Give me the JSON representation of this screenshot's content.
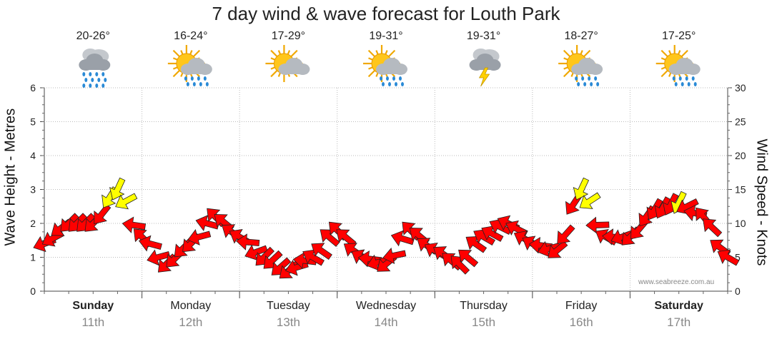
{
  "chart_data": {
    "type": "line",
    "title": "7 day wind & wave forecast for Louth Park",
    "ylabel_left": "Wave Height - Metres",
    "ylabel_right": "Wind Speed - Knots",
    "ylim_left": [
      0,
      6
    ],
    "ylim_right": [
      0,
      30
    ],
    "yticks_left": [
      "0",
      "1",
      "2",
      "3",
      "4",
      "5",
      "6"
    ],
    "yticks_right": [
      "0",
      "5",
      "10",
      "15",
      "20",
      "25",
      "30"
    ],
    "grid": true,
    "credit": "www.seabreeze.com.au",
    "days": [
      {
        "name": "Sunday",
        "date": "11th",
        "temp": "20-26°",
        "icon": "rain-cloud-icon",
        "bold": true
      },
      {
        "name": "Monday",
        "date": "12th",
        "temp": "16-24°",
        "icon": "sun-shower-icon",
        "bold": false
      },
      {
        "name": "Tuesday",
        "date": "13th",
        "temp": "17-29°",
        "icon": "partly-cloudy-icon",
        "bold": false
      },
      {
        "name": "Wednesday",
        "date": "14th",
        "temp": "19-31°",
        "icon": "sun-shower-icon",
        "bold": false
      },
      {
        "name": "Thursday",
        "date": "15th",
        "temp": "19-31°",
        "icon": "thunderstorm-icon",
        "bold": false
      },
      {
        "name": "Friday",
        "date": "16th",
        "temp": "18-27°",
        "icon": "sun-shower-icon",
        "bold": false
      },
      {
        "name": "Saturday",
        "date": "17th",
        "temp": "17-25°",
        "icon": "sun-shower-icon",
        "bold": true
      }
    ],
    "series": [
      {
        "name": "Wind Speed",
        "color": "#ff0000",
        "highlight_color": "#ffff00",
        "x_hours": [
          0,
          6,
          12,
          18,
          24,
          30,
          36,
          42,
          48,
          54,
          60,
          66,
          72,
          78,
          84,
          90,
          96,
          102,
          108,
          114,
          120,
          126,
          132,
          138,
          144,
          150,
          156,
          162,
          168
        ],
        "knots": [
          7,
          10,
          10,
          15,
          8,
          4,
          7,
          11,
          8,
          5,
          3,
          5,
          9,
          5,
          4,
          9,
          6,
          4,
          8,
          10,
          7,
          6,
          15,
          8,
          8,
          12,
          13,
          11,
          5
        ],
        "direction_deg": [
          250,
          225,
          225,
          205,
          315,
          225,
          225,
          315,
          300,
          225,
          230,
          300,
          315,
          300,
          230,
          315,
          300,
          315,
          300,
          295,
          300,
          230,
          205,
          300,
          225,
          210,
          205,
          320,
          300
        ]
      }
    ]
  }
}
